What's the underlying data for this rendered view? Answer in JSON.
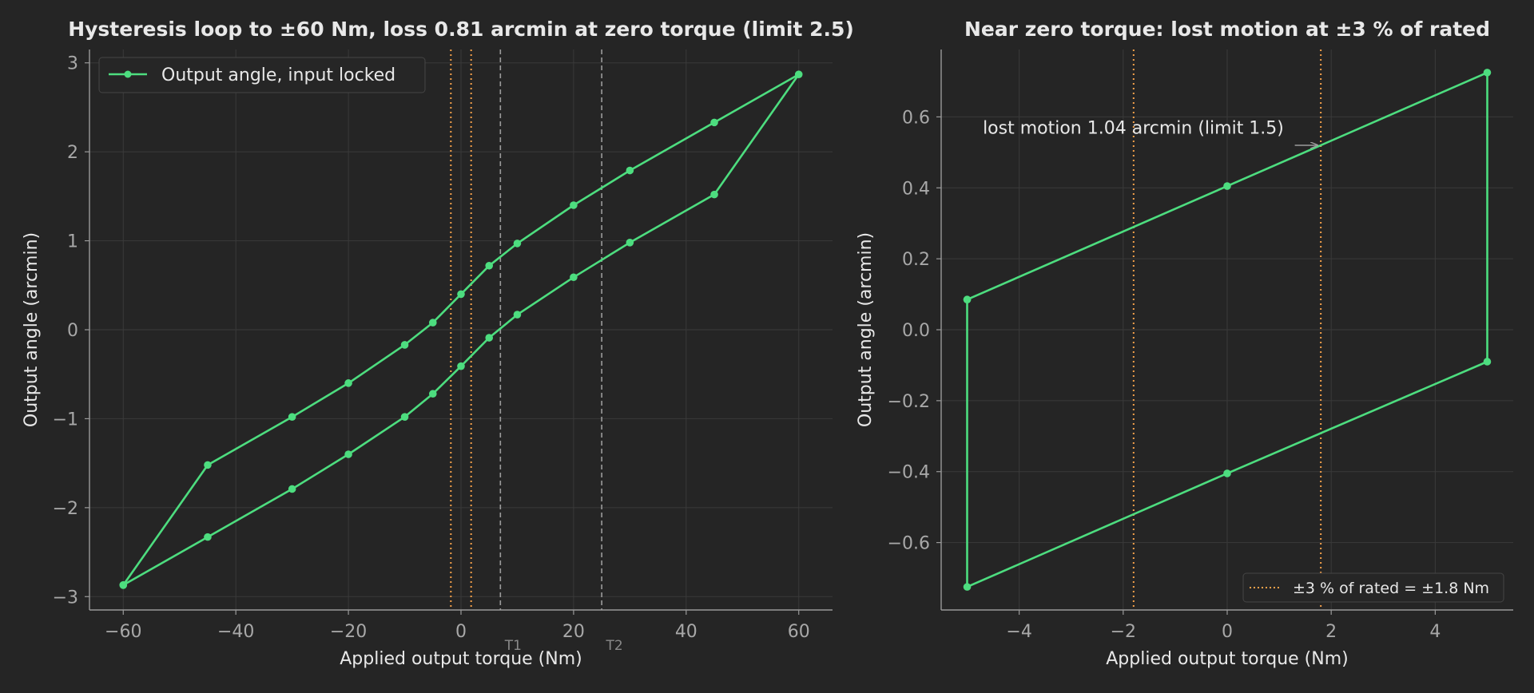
{
  "colors": {
    "background": "#252525",
    "grid": "#3a3a3a",
    "axis": "#9a9a9a",
    "tick_text": "#a8a8a8",
    "text": "#e8e8e8",
    "series": "#4ddd7f",
    "rated_band": "#f5a04a",
    "reference": "#9c9c9c"
  },
  "chart_data": [
    {
      "type": "line",
      "title": "Hysteresis loop to ±60 Nm, loss 0.81 arcmin at zero torque (limit 2.5)",
      "xlabel": "Applied output torque (Nm)",
      "ylabel": "Output angle (arcmin)",
      "xlim": [
        -66,
        66
      ],
      "ylim": [
        -3.15,
        3.15
      ],
      "xticks": [
        -60,
        -40,
        -20,
        0,
        20,
        40,
        60
      ],
      "yticks": [
        -3,
        -2,
        -1,
        0,
        1,
        2,
        3
      ],
      "grid": true,
      "legend_position": "upper left",
      "series": [
        {
          "name": "Output angle, input locked",
          "marker": "circle",
          "x": [
            -60,
            -45,
            -30,
            -20,
            -10,
            -5,
            0,
            5,
            10,
            20,
            30,
            45,
            60,
            45,
            30,
            20,
            10,
            5,
            0,
            -5,
            -10,
            -20,
            -30,
            -45,
            -60
          ],
          "y": [
            -2.87,
            -2.33,
            -1.79,
            -1.4,
            -0.98,
            -0.72,
            -0.41,
            -0.09,
            0.17,
            0.59,
            0.98,
            1.52,
            2.87,
            2.33,
            1.79,
            1.4,
            0.97,
            0.72,
            0.4,
            0.08,
            -0.17,
            -0.6,
            -0.98,
            -1.52,
            -2.87
          ]
        }
      ],
      "vlines": [
        {
          "x": -1.8,
          "style": "dotted",
          "color": "rated_band",
          "label": ""
        },
        {
          "x": 1.8,
          "style": "dotted",
          "color": "rated_band",
          "label": ""
        },
        {
          "x": 7,
          "style": "dashed",
          "color": "reference",
          "label": "T1"
        },
        {
          "x": 25,
          "style": "dashed",
          "color": "reference",
          "label": "T2"
        }
      ]
    },
    {
      "type": "line",
      "title": "Near zero torque: lost motion at ±3 % of rated",
      "xlabel": "Applied output torque (Nm)",
      "ylabel": "Output angle (arcmin)",
      "xlim": [
        -5.5,
        5.5
      ],
      "ylim": [
        -0.79,
        0.79
      ],
      "xticks": [
        -4,
        -2,
        0,
        2,
        4
      ],
      "yticks": [
        -0.6,
        -0.4,
        -0.2,
        0.0,
        0.2,
        0.4,
        0.6
      ],
      "ytick_labels": [
        "−0.6",
        "−0.4",
        "−0.2",
        "0.0",
        "0.2",
        "0.4",
        "0.6"
      ],
      "grid": true,
      "legend_position": "lower right",
      "legend_label": "±3 % of rated = ±1.8 Nm",
      "series": [
        {
          "name": "",
          "marker": "circle",
          "x": [
            -5,
            0,
            5,
            5,
            0,
            -5,
            -5
          ],
          "y": [
            0.085,
            0.405,
            0.725,
            -0.09,
            -0.405,
            -0.725,
            0.085
          ]
        }
      ],
      "vlines": [
        {
          "x": -1.8,
          "style": "dotted",
          "color": "rated_band",
          "label": ""
        },
        {
          "x": 1.8,
          "style": "dotted",
          "color": "rated_band",
          "label": ""
        }
      ],
      "annotation": {
        "text": "lost motion 1.04 arcmin (limit 1.5)",
        "text_at": [
          -4.7,
          0.57
        ],
        "arrow_from": [
          1.3,
          0.52
        ],
        "arrow_to": [
          1.8,
          0.52
        ]
      }
    }
  ]
}
